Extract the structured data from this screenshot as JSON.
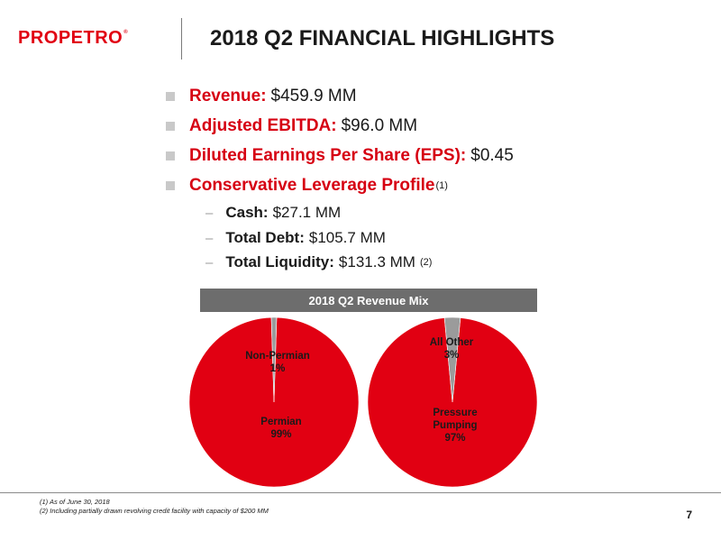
{
  "header": {
    "logo_text": "PROPETRO",
    "logo_mark": "®",
    "title": "2018 Q2 FINANCIAL HIGHLIGHTS"
  },
  "bullets": [
    {
      "label": "Revenue:",
      "value": "$459.9 MM"
    },
    {
      "label": "Adjusted EBITDA:",
      "value": "$96.0 MM"
    },
    {
      "label": "Diluted Earnings Per Share (EPS):",
      "value": "$0.45"
    },
    {
      "label": "Conservative Leverage Profile",
      "value": "",
      "note": "(1)"
    }
  ],
  "sub_bullets": [
    {
      "label": "Cash:",
      "value": "$27.1 MM",
      "note": ""
    },
    {
      "label": "Total Debt:",
      "value": "$105.7 MM",
      "note": ""
    },
    {
      "label": "Total Liquidity:",
      "value": "$131.3 MM",
      "note": "(2)"
    }
  ],
  "revenue_mix": {
    "title": "2018 Q2 Revenue Mix"
  },
  "colors": {
    "brand_red": "#e10012",
    "slice_minor": "#9b9b9b",
    "banner_gray": "#6d6d6d"
  },
  "chart_data": [
    {
      "type": "pie",
      "title": "",
      "slices": [
        {
          "label": "Permian",
          "value": 99,
          "display": "99%"
        },
        {
          "label": "Non-Permian",
          "value": 1,
          "display": "1%"
        }
      ]
    },
    {
      "type": "pie",
      "title": "",
      "slices": [
        {
          "label": "Pressure Pumping",
          "value": 97,
          "display": "97%"
        },
        {
          "label": "All Other",
          "value": 3,
          "display": "3%"
        }
      ]
    }
  ],
  "footnotes": [
    "(1)  As of June 30, 2018",
    "(2)  Including partially drawn revolving credit facility with capacity of $200 MM"
  ],
  "page_number": "7"
}
